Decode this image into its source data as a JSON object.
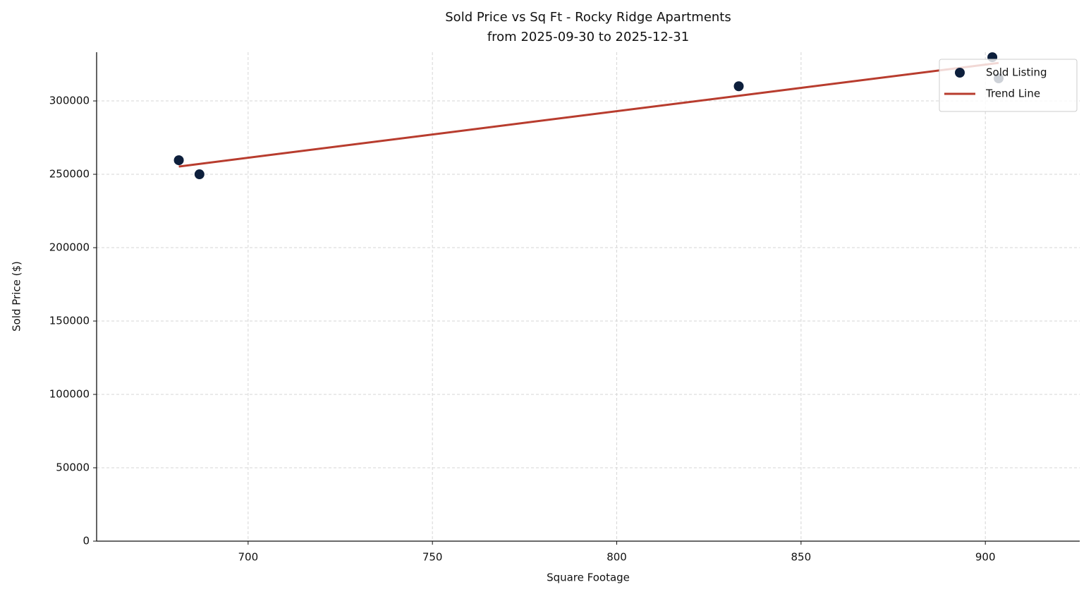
{
  "chart_data": {
    "type": "scatter",
    "title": "Sold Price vs Sq Ft - Rocky Ridge Apartments",
    "subtitle": "from 2025-09-30 to 2025-12-31",
    "x_label": "Square Footage",
    "y_label": "Sold Price ($)",
    "xlim": [
      658.9,
      925.6
    ],
    "ylim": [
      0,
      333200
    ],
    "xticks": [
      700,
      750,
      800,
      850,
      900
    ],
    "yticks": [
      0,
      50000,
      100000,
      150000,
      200000,
      250000,
      300000
    ],
    "grid": true,
    "legend": "upper right",
    "series": [
      {
        "name": "Sold Listing",
        "type": "scatter",
        "color": "#0d1f3c",
        "x": [
          681.2,
          686.8,
          833.1,
          901.9,
          903.6
        ],
        "values": [
          259600,
          250000,
          310000,
          329800,
          315400
        ]
      },
      {
        "name": "Trend Line",
        "type": "line",
        "color": "#b83c2e",
        "x": [
          681.2,
          903.6
        ],
        "values": [
          255300,
          325900
        ]
      }
    ]
  }
}
